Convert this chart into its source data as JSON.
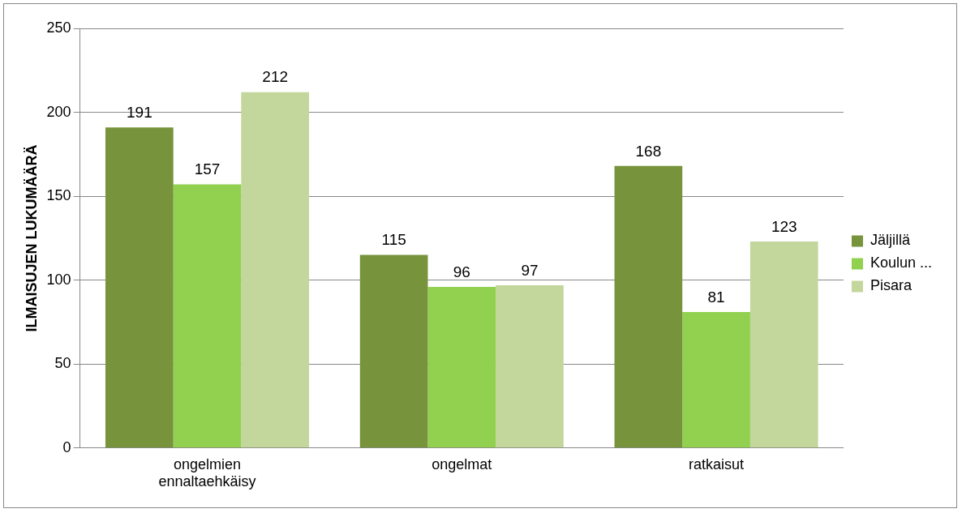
{
  "chart_data": {
    "type": "bar",
    "ylabel": "ILMAISUJEN LUKUMÄÄRÄ",
    "categories": [
      "ongelmien ennaltaehkäisy",
      "ongelmat",
      "ratkaisut"
    ],
    "series": [
      {
        "name": "Jäljillä",
        "color": "#77933c",
        "values": [
          191,
          115,
          168
        ]
      },
      {
        "name": "Koulun ...",
        "color": "#92d050",
        "values": [
          157,
          96,
          81
        ]
      },
      {
        "name": "Pisara",
        "color": "#c3d69b",
        "values": [
          212,
          97,
          123
        ]
      }
    ],
    "ylim": [
      0,
      250
    ],
    "yticks": [
      0,
      50,
      100,
      150,
      200,
      250
    ],
    "grid": "y",
    "legend": "right",
    "data_labels": true
  }
}
